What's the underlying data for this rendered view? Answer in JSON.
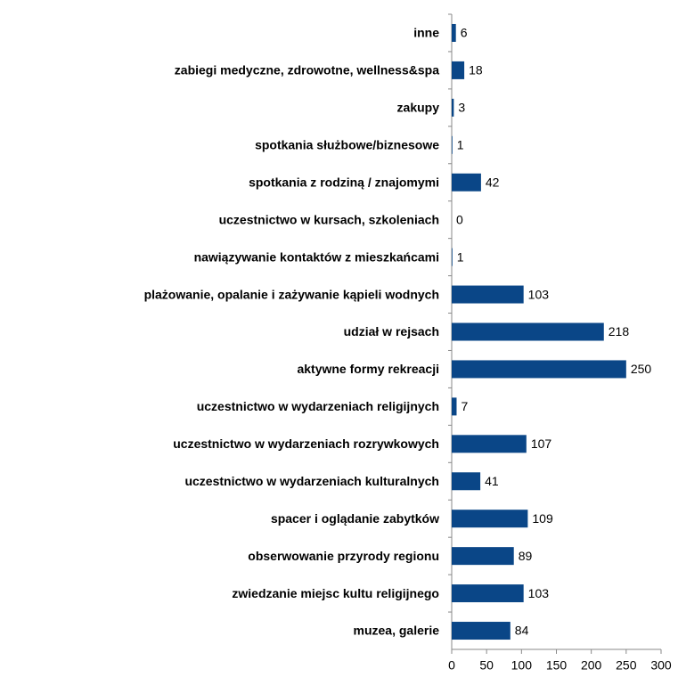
{
  "chart_data": {
    "type": "bar",
    "orientation": "horizontal",
    "categories": [
      "inne",
      "zabiegi medyczne, zdrowotne, wellness&spa",
      "zakupy",
      "spotkania służbowe/biznesowe",
      "spotkania z rodziną / znajomymi",
      "uczestnictwo w kursach, szkoleniach",
      "nawiązywanie kontaktów z mieszkańcami",
      "plażowanie, opalanie i zażywanie kąpieli wodnych",
      "udział w rejsach",
      "aktywne formy rekreacji",
      "uczestnictwo w wydarzeniach religijnych",
      "uczestnictwo w wydarzeniach rozrywkowych",
      "uczestnictwo w wydarzeniach kulturalnych",
      "spacer i oglądanie zabytków",
      "obserwowanie przyrody regionu",
      "zwiedzanie miejsc kultu religijnego",
      "muzea, galerie"
    ],
    "values": [
      6,
      18,
      3,
      1,
      42,
      0,
      1,
      103,
      218,
      250,
      7,
      107,
      41,
      109,
      89,
      103,
      84
    ],
    "color": "#0a4687",
    "xlim": [
      0,
      300
    ],
    "xticks": [
      0,
      50,
      100,
      150,
      200,
      250,
      300
    ]
  }
}
